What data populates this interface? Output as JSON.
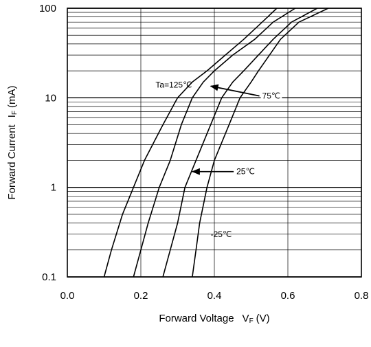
{
  "chart_data": {
    "type": "line",
    "xlabel": {
      "main": "Forward Voltage",
      "symbol": "V",
      "subscript": "F",
      "unit": "(V)"
    },
    "ylabel": {
      "main": "Forward Current",
      "symbol": "I",
      "subscript": "F",
      "unit": "(mA)"
    },
    "x_scale": "linear",
    "y_scale": "log",
    "xlim": [
      0,
      0.8
    ],
    "ylim": [
      0.1,
      100
    ],
    "x_ticks": [
      {
        "value": 0.0,
        "label": "0.0"
      },
      {
        "value": 0.2,
        "label": "0.2"
      },
      {
        "value": 0.4,
        "label": "0.4"
      },
      {
        "value": 0.6,
        "label": "0.6"
      },
      {
        "value": 0.8,
        "label": "0.8"
      }
    ],
    "y_ticks": [
      {
        "value": 0.1,
        "label": "0.1"
      },
      {
        "value": 1,
        "label": "1"
      },
      {
        "value": 10,
        "label": "10"
      },
      {
        "value": 100,
        "label": "100"
      }
    ],
    "grid": true,
    "series": [
      {
        "name": "Ta=125℃",
        "points": [
          [
            0.1,
            0.1
          ],
          [
            0.12,
            0.2
          ],
          [
            0.15,
            0.5
          ],
          [
            0.18,
            1
          ],
          [
            0.21,
            2
          ],
          [
            0.26,
            5
          ],
          [
            0.3,
            10
          ],
          [
            0.34,
            15
          ],
          [
            0.38,
            20
          ],
          [
            0.43,
            30
          ],
          [
            0.48,
            45
          ],
          [
            0.53,
            70
          ],
          [
            0.57,
            100
          ]
        ]
      },
      {
        "name": "75℃",
        "points": [
          [
            0.18,
            0.1
          ],
          [
            0.2,
            0.2
          ],
          [
            0.22,
            0.4
          ],
          [
            0.25,
            1
          ],
          [
            0.28,
            2
          ],
          [
            0.31,
            5
          ],
          [
            0.34,
            10
          ],
          [
            0.37,
            15
          ],
          [
            0.4,
            20
          ],
          [
            0.45,
            30
          ],
          [
            0.51,
            45
          ],
          [
            0.56,
            70
          ],
          [
            0.62,
            100
          ]
        ]
      },
      {
        "name": "25℃",
        "points": [
          [
            0.26,
            0.1
          ],
          [
            0.28,
            0.2
          ],
          [
            0.3,
            0.4
          ],
          [
            0.32,
            1
          ],
          [
            0.35,
            2
          ],
          [
            0.39,
            5
          ],
          [
            0.42,
            10
          ],
          [
            0.45,
            15
          ],
          [
            0.48,
            20
          ],
          [
            0.52,
            30
          ],
          [
            0.56,
            45
          ],
          [
            0.61,
            70
          ],
          [
            0.68,
            100
          ]
        ]
      },
      {
        "name": "-25℃",
        "points": [
          [
            0.34,
            0.1
          ],
          [
            0.35,
            0.2
          ],
          [
            0.36,
            0.4
          ],
          [
            0.38,
            1
          ],
          [
            0.4,
            2
          ],
          [
            0.44,
            5
          ],
          [
            0.47,
            10
          ],
          [
            0.5,
            15
          ],
          [
            0.52,
            20
          ],
          [
            0.55,
            30
          ],
          [
            0.58,
            45
          ],
          [
            0.63,
            70
          ],
          [
            0.71,
            100
          ]
        ]
      }
    ],
    "annotations": [
      {
        "text": "Ta=125℃",
        "x": 0.24,
        "y": 14
      },
      {
        "text": "75℃",
        "x": 0.53,
        "y": 10.5,
        "arrow_to": [
          0.39,
          13.5
        ]
      },
      {
        "text": "25℃",
        "x": 0.46,
        "y": 1.5,
        "arrow_to": [
          0.34,
          1.5
        ]
      },
      {
        "text": "-25℃",
        "x": 0.39,
        "y": 0.3
      }
    ]
  }
}
